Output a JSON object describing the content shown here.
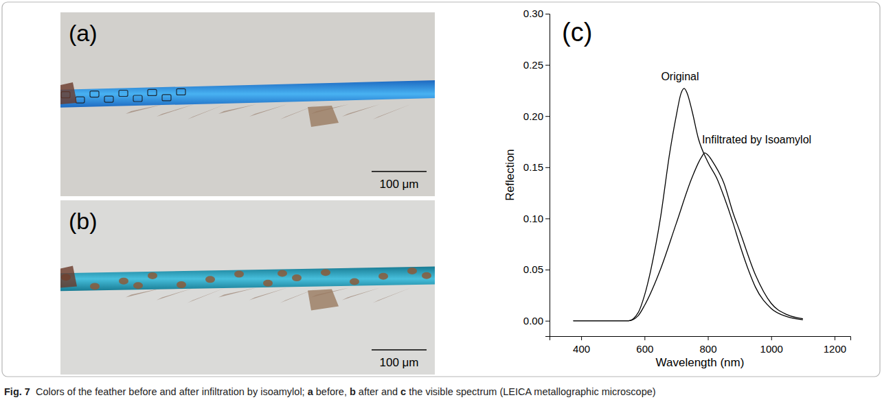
{
  "figure": {
    "panels": [
      {
        "label": "(a)",
        "scale_bar": "100 μm"
      },
      {
        "label": "(b)",
        "scale_bar": "100 μm"
      }
    ],
    "caption": [
      {
        "text": "Fig. 7",
        "bold": true
      },
      {
        "text": "  Colors of the feather before and after infiltration by isoamylol; ",
        "bold": false
      },
      {
        "text": "a",
        "bold": true
      },
      {
        "text": " before, ",
        "bold": false
      },
      {
        "text": "b",
        "bold": true
      },
      {
        "text": " after and ",
        "bold": false
      },
      {
        "text": "c",
        "bold": true
      },
      {
        "text": " the visible spectrum (LEICA metallographic microscope)",
        "bold": false
      }
    ]
  },
  "chart_data": {
    "type": "line",
    "panel_label": "(c)",
    "x_label": "Wavelength (nm)",
    "y_label": "Reflection",
    "xlim": [
      300,
      1250
    ],
    "xticks": [
      400,
      600,
      800,
      1000,
      1200
    ],
    "ylim": [
      -0.015,
      0.3
    ],
    "yticks": [
      {
        "value": 0,
        "label": "0.00"
      },
      {
        "value": 0.05,
        "label": "0.05"
      },
      {
        "value": 0.1,
        "label": "0.10"
      },
      {
        "value": 0.15,
        "label": "0.15"
      },
      {
        "value": 0.2,
        "label": "0.20"
      },
      {
        "value": 0.25,
        "label": "0.25"
      },
      {
        "value": 0.3,
        "label": "0.30"
      }
    ],
    "grid": false,
    "series": [
      {
        "name": "Original",
        "color": "#000000",
        "x": [
          375,
          450,
          500,
          550,
          580,
          600,
          620,
          650,
          680,
          700,
          715,
          725,
          735,
          750,
          770,
          800,
          830,
          850,
          880,
          900,
          930,
          950,
          1000,
          1050,
          1100
        ],
        "values": [
          0,
          0,
          0,
          0,
          0.008,
          0.025,
          0.05,
          0.1,
          0.165,
          0.2,
          0.222,
          0.227,
          0.222,
          0.205,
          0.178,
          0.155,
          0.138,
          0.122,
          0.095,
          0.075,
          0.048,
          0.033,
          0.012,
          0.004,
          0.001
        ]
      },
      {
        "name": "Infiltrated by Isoamylol",
        "color": "#000000",
        "x": [
          375,
          450,
          500,
          550,
          580,
          600,
          650,
          700,
          750,
          780,
          790,
          800,
          820,
          850,
          880,
          900,
          950,
          1000,
          1050,
          1100
        ],
        "values": [
          0,
          0,
          0,
          0,
          0.005,
          0.015,
          0.05,
          0.095,
          0.14,
          0.16,
          0.164,
          0.162,
          0.153,
          0.135,
          0.105,
          0.088,
          0.045,
          0.017,
          0.006,
          0.002
        ]
      }
    ]
  }
}
